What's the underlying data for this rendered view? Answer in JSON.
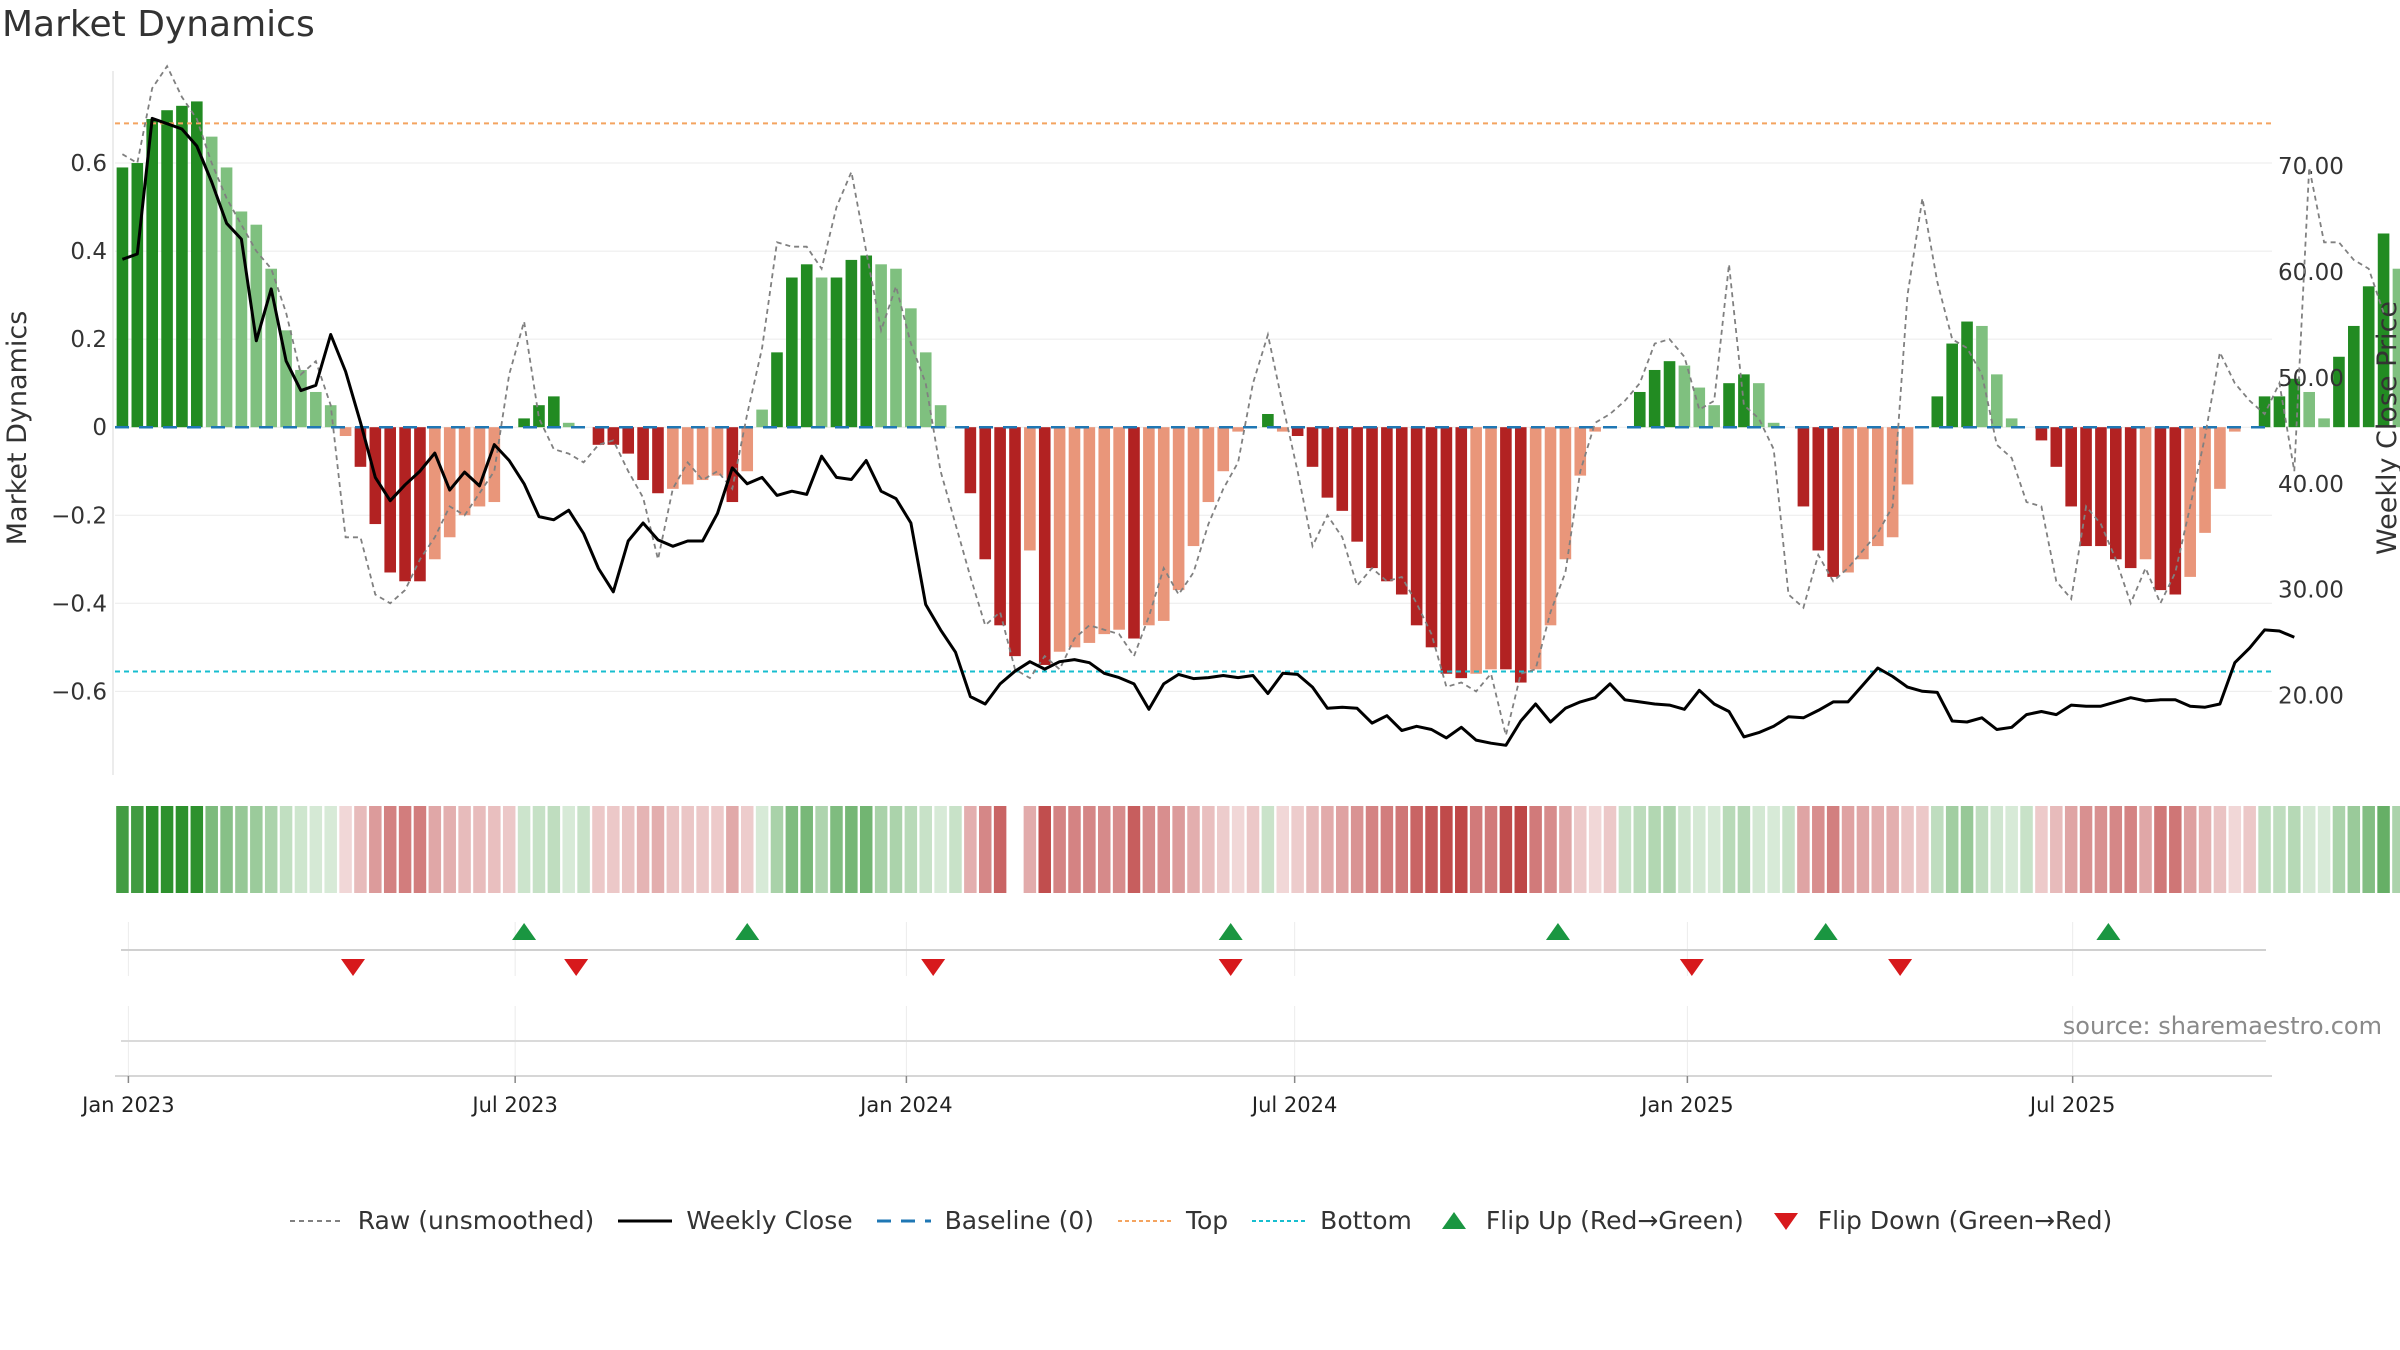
{
  "title": "Market Dynamics",
  "source": "source: sharemaestro.com",
  "colors": {
    "green_dark": "#228b22",
    "green_light": "#7fc07f",
    "red_dark": "#b22222",
    "red_light": "#e9967a",
    "top_line": "#f4a460",
    "bottom_line": "#17becf",
    "baseline": "#1f77b4",
    "close_line": "#000000",
    "raw_line": "#808080",
    "flip_up": "#1a9641",
    "flip_down": "#d7191c"
  },
  "legend": [
    {
      "key": "raw",
      "label": "Raw (unsmoothed)"
    },
    {
      "key": "close",
      "label": "Weekly Close"
    },
    {
      "key": "baseline",
      "label": "Baseline (0)"
    },
    {
      "key": "top",
      "label": "Top"
    },
    {
      "key": "bottom",
      "label": "Bottom"
    },
    {
      "key": "flip_up",
      "label": "Flip Up (Red→Green)"
    },
    {
      "key": "flip_down",
      "label": "Flip Down (Green→Red)"
    }
  ],
  "chart_data": {
    "type": "bar",
    "title": "Market Dynamics",
    "ylabel": "Market Dynamics",
    "y2label": "Weekly Close Price",
    "ylim": [
      -0.79,
      0.8
    ],
    "y2lim": [
      12.5,
      78.6
    ],
    "yticks": [
      -0.6,
      -0.4,
      -0.2,
      0,
      0.2,
      0.4,
      0.6
    ],
    "ytick_labels": [
      "−0.6",
      "−0.4",
      "−0.2",
      "0",
      "0.2",
      "0.4",
      "0.6"
    ],
    "y2ticks": [
      20,
      30,
      40,
      50,
      60,
      70
    ],
    "y2tick_labels": [
      "20.00",
      "30.00",
      "40.00",
      "50.00",
      "60.00",
      "70.00"
    ],
    "x_ticks": [
      {
        "week": 0.4,
        "label": "Jan 2023"
      },
      {
        "week": 26.4,
        "label": "Jul 2023"
      },
      {
        "week": 52.7,
        "label": "Jan 2024"
      },
      {
        "week": 78.8,
        "label": "Jul 2024"
      },
      {
        "week": 105.2,
        "label": "Jan 2025"
      },
      {
        "week": 131.1,
        "label": "Jul 2025"
      }
    ],
    "top_level": 0.69,
    "bottom_level": -0.555,
    "baseline_level": 0,
    "weeks": 145,
    "series": [
      {
        "name": "Market Dynamics",
        "values": [
          0.59,
          0.6,
          0.7,
          0.72,
          0.73,
          0.74,
          0.66,
          0.59,
          0.49,
          0.46,
          0.36,
          0.22,
          0.13,
          0.08,
          0.05,
          -0.02,
          -0.09,
          -0.22,
          -0.33,
          -0.35,
          -0.35,
          -0.3,
          -0.25,
          -0.2,
          -0.18,
          -0.17,
          0.0,
          0.02,
          0.05,
          0.07,
          0.01,
          0.0,
          -0.04,
          -0.04,
          -0.06,
          -0.12,
          -0.15,
          -0.14,
          -0.13,
          -0.12,
          -0.11,
          -0.17,
          -0.1,
          0.04,
          0.17,
          0.34,
          0.37,
          0.34,
          0.34,
          0.38,
          0.39,
          0.37,
          0.36,
          0.27,
          0.17,
          0.05,
          0.0,
          -0.15,
          -0.3,
          -0.45,
          -0.52,
          -0.28,
          -0.54,
          -0.51,
          -0.5,
          -0.49,
          -0.47,
          -0.46,
          -0.48,
          -0.45,
          -0.44,
          -0.37,
          -0.27,
          -0.17,
          -0.1,
          -0.01,
          0.0,
          0.03,
          -0.01,
          -0.02,
          -0.09,
          -0.16,
          -0.19,
          -0.26,
          -0.32,
          -0.35,
          -0.38,
          -0.45,
          -0.5,
          -0.56,
          -0.57,
          -0.56,
          -0.55,
          -0.55,
          -0.58,
          -0.55,
          -0.45,
          -0.3,
          -0.11,
          -0.01,
          0.0,
          0.0,
          0.08,
          0.13,
          0.15,
          0.14,
          0.09,
          0.05,
          0.1,
          0.12,
          0.1,
          0.01,
          0.0,
          -0.18,
          -0.28,
          -0.34,
          -0.33,
          -0.3,
          -0.27,
          -0.25,
          -0.13,
          0.0,
          0.07,
          0.19,
          0.24,
          0.23,
          0.12,
          0.02,
          0.0,
          -0.03,
          -0.09,
          -0.18,
          -0.27,
          -0.27,
          -0.3,
          -0.32,
          -0.3,
          -0.37,
          -0.38,
          -0.34,
          -0.24,
          -0.14,
          -0.01,
          0.0,
          0.07,
          0.07,
          0.11,
          0.08,
          0.02,
          0.16,
          0.23,
          0.32,
          0.44,
          0.36
        ]
      },
      {
        "name": "Raw (unsmoothed)",
        "values": [
          0.62,
          0.6,
          0.77,
          0.82,
          0.75,
          0.7,
          0.6,
          0.52,
          0.46,
          0.4,
          0.36,
          0.26,
          0.12,
          0.15,
          0.05,
          -0.25,
          -0.25,
          -0.38,
          -0.4,
          -0.37,
          -0.3,
          -0.25,
          -0.18,
          -0.2,
          -0.15,
          -0.1,
          0.12,
          0.24,
          0.02,
          -0.05,
          -0.06,
          -0.08,
          -0.04,
          -0.03,
          -0.1,
          -0.16,
          -0.3,
          -0.14,
          -0.08,
          -0.12,
          -0.1,
          -0.14,
          0.03,
          0.18,
          0.42,
          0.41,
          0.41,
          0.36,
          0.5,
          0.58,
          0.4,
          0.22,
          0.32,
          0.19,
          0.1,
          -0.1,
          -0.22,
          -0.34,
          -0.45,
          -0.42,
          -0.55,
          -0.57,
          -0.52,
          -0.55,
          -0.48,
          -0.45,
          -0.46,
          -0.47,
          -0.52,
          -0.43,
          -0.32,
          -0.38,
          -0.33,
          -0.22,
          -0.14,
          -0.08,
          0.1,
          0.21,
          0.05,
          -0.1,
          -0.27,
          -0.2,
          -0.25,
          -0.36,
          -0.32,
          -0.35,
          -0.34,
          -0.4,
          -0.47,
          -0.59,
          -0.58,
          -0.6,
          -0.56,
          -0.7,
          -0.56,
          -0.55,
          -0.42,
          -0.33,
          -0.1,
          0.01,
          0.03,
          0.06,
          0.1,
          0.19,
          0.2,
          0.16,
          0.04,
          0.06,
          0.37,
          0.05,
          0.02,
          -0.05,
          -0.38,
          -0.41,
          -0.29,
          -0.35,
          -0.32,
          -0.28,
          -0.24,
          -0.18,
          0.3,
          0.52,
          0.33,
          0.2,
          0.18,
          0.12,
          -0.04,
          -0.07,
          -0.17,
          -0.18,
          -0.35,
          -0.39,
          -0.18,
          -0.22,
          -0.3,
          -0.4,
          -0.32,
          -0.4,
          -0.33,
          -0.18,
          -0.02,
          0.17,
          0.1,
          0.06,
          0.03,
          0.1,
          -0.1,
          0.59,
          0.42,
          0.42,
          0.38,
          0.36,
          0.26
        ]
      },
      {
        "name": "Weekly Close",
        "values": [
          61.2,
          61.7,
          74.5,
          74.0,
          73.5,
          71.9,
          68.5,
          64.6,
          63.1,
          53.5,
          58.4,
          51.6,
          48.8,
          49.3,
          54.1,
          50.6,
          45.8,
          40.6,
          38.4,
          39.9,
          41.2,
          42.9,
          39.4,
          41.1,
          39.8,
          43.7,
          42.2,
          40.0,
          36.9,
          36.6,
          37.5,
          35.3,
          32.0,
          29.8,
          34.6,
          36.3,
          34.7,
          34.1,
          34.6,
          34.6,
          37.2,
          41.5,
          40.0,
          40.6,
          38.9,
          39.3,
          39.0,
          42.6,
          40.6,
          40.4,
          42.2,
          39.3,
          38.6,
          36.3,
          28.6,
          26.2,
          24.1,
          19.9,
          19.2,
          21.1,
          22.3,
          23.2,
          22.5,
          23.2,
          23.4,
          23.1,
          22.1,
          21.7,
          21.1,
          18.7,
          21.1,
          22.0,
          21.6,
          21.7,
          21.9,
          21.7,
          21.9,
          20.2,
          22.1,
          22.0,
          20.8,
          18.8,
          18.9,
          18.8,
          17.4,
          18.1,
          16.7,
          17.1,
          16.8,
          16.0,
          17.0,
          15.8,
          15.5,
          15.3,
          17.6,
          19.2,
          17.5,
          18.8,
          19.4,
          19.8,
          21.1,
          19.6,
          19.4,
          19.2,
          19.1,
          18.7,
          20.5,
          19.2,
          18.5,
          16.1,
          16.5,
          17.1,
          18.0,
          17.9,
          18.6,
          19.4,
          19.4,
          21.0,
          22.6,
          21.8,
          20.8,
          20.4,
          20.3,
          17.6,
          17.5,
          17.9,
          16.8,
          17.0,
          18.2,
          18.5,
          18.2,
          19.1,
          19.0,
          19.0,
          19.4,
          19.8,
          19.5,
          19.6,
          19.6,
          19.0,
          18.9,
          19.2,
          23.1,
          24.5,
          26.2,
          26.1,
          25.5
        ]
      },
      {
        "name": "Regime strip",
        "values": [
          0.59,
          0.6,
          0.7,
          0.72,
          0.73,
          0.74,
          0.66,
          0.59,
          0.49,
          0.46,
          0.36,
          0.22,
          0.13,
          0.08,
          0.05,
          -0.02,
          -0.09,
          -0.22,
          -0.33,
          -0.35,
          -0.35,
          -0.3,
          -0.25,
          -0.2,
          -0.18,
          -0.17,
          0.0,
          0.02,
          0.05,
          0.07,
          0.01,
          0.0,
          -0.04,
          -0.04,
          -0.06,
          -0.12,
          -0.15,
          -0.14,
          -0.13,
          -0.12,
          -0.11,
          -0.17,
          -0.1,
          0.04,
          0.17,
          0.34,
          0.37,
          0.34,
          0.34,
          0.38,
          0.39,
          0.37,
          0.36,
          0.27,
          0.17,
          0.05,
          0.0,
          -0.15,
          -0.3,
          -0.45,
          null,
          -0.28,
          -0.54,
          -0.51,
          -0.5,
          -0.49,
          -0.47,
          -0.46,
          -0.48,
          -0.45,
          -0.44,
          -0.37,
          -0.27,
          -0.17,
          -0.1,
          -0.01,
          0.0,
          0.03,
          -0.01,
          -0.02,
          -0.09,
          -0.16,
          -0.19,
          -0.26,
          -0.32,
          -0.35,
          -0.38,
          -0.45,
          -0.5,
          -0.56,
          -0.57,
          -0.56,
          -0.55,
          -0.55,
          -0.58,
          -0.55,
          -0.45,
          -0.3,
          -0.11,
          -0.01,
          0.0,
          0.0,
          0.08,
          0.13,
          0.15,
          0.14,
          0.09,
          0.05,
          0.1,
          0.12,
          0.1,
          0.01,
          0.0,
          -0.18,
          -0.28,
          -0.34,
          -0.33,
          -0.3,
          -0.27,
          -0.25,
          -0.13,
          0.0,
          0.07,
          0.19,
          0.24,
          0.23,
          0.12,
          0.02,
          0.0,
          -0.03,
          -0.09,
          -0.18,
          -0.27,
          -0.27,
          -0.3,
          -0.32,
          -0.3,
          -0.37,
          -0.38,
          -0.34,
          -0.24,
          -0.14,
          -0.01,
          0.0,
          0.07,
          0.07,
          0.11,
          0.08,
          0.02,
          0.16,
          0.23,
          0.32,
          0.44,
          0.36
        ]
      }
    ],
    "flip_up_weeks": [
      27,
      42,
      74.5,
      96.5,
      114.5,
      133.5
    ],
    "flip_down_weeks": [
      15.5,
      30.5,
      54.5,
      74.5,
      105.5,
      119.5
    ]
  }
}
